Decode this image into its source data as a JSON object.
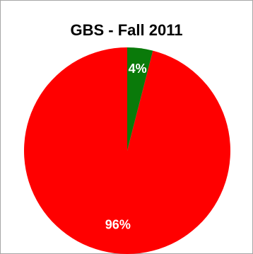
{
  "chart_data": {
    "type": "pie",
    "title": "GBS - Fall 2011",
    "slices": [
      {
        "value": 96,
        "label": "96%",
        "color": "#ff0000"
      },
      {
        "value": 4,
        "label": "4%",
        "color": "#0a7a0a"
      }
    ],
    "start": "top",
    "direction": "clockwise",
    "legend": "none"
  }
}
